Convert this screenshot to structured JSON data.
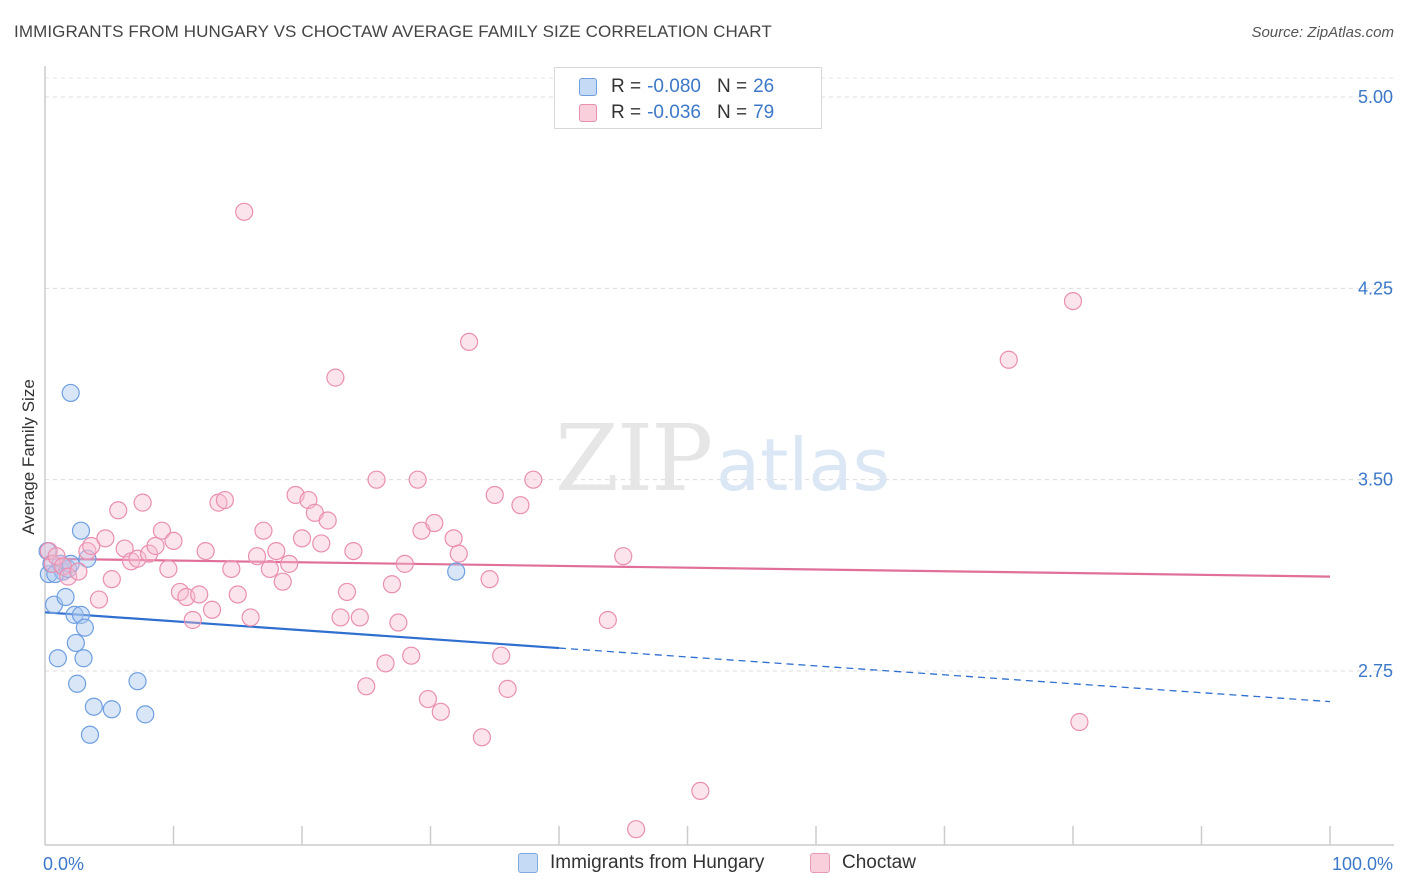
{
  "title": "IMMIGRANTS FROM HUNGARY VS CHOCTAW AVERAGE FAMILY SIZE CORRELATION CHART",
  "source": "Source: ZipAtlas.com",
  "watermark": {
    "zip": "ZIP",
    "atlas": "atlas"
  },
  "legend": {
    "rows": [
      {
        "r_label": "R =",
        "r_value": "-0.080",
        "n_label": "N =",
        "n_value": "26",
        "color": "#a9c8f0",
        "border": "#6f9fe0"
      },
      {
        "r_label": "R =",
        "r_value": "-0.036",
        "n_label": "N =",
        "n_value": "79",
        "color": "#f7bcd0",
        "border": "#e98fb0"
      }
    ]
  },
  "bottom_legend": [
    {
      "label": "Immigrants from Hungary",
      "color": "#c5daf5",
      "border": "#7fa9e0"
    },
    {
      "label": "Choctaw",
      "color": "#f9cfdc",
      "border": "#e99ab5"
    }
  ],
  "chart_data": {
    "type": "scatter",
    "title": "IMMIGRANTS FROM HUNGARY VS CHOCTAW AVERAGE FAMILY SIZE CORRELATION CHART",
    "xlabel": "",
    "ylabel": "Average Family Size",
    "xlim": [
      0,
      100
    ],
    "ylim": [
      2.0,
      5.1
    ],
    "x_tick_labels": [
      "0.0%",
      "100.0%"
    ],
    "y_ticks": [
      2.75,
      3.5,
      4.25,
      5.0
    ],
    "y_tick_labels": [
      "2.75",
      "3.50",
      "4.25",
      "5.00"
    ],
    "grid": true,
    "series": [
      {
        "name": "Immigrants from Hungary",
        "color": "#6f9fe0",
        "fill": "rgba(169,200,240,0.45)",
        "trend": {
          "x0": 0,
          "y0": 2.98,
          "x1": 40,
          "y1": 2.84,
          "dashed_to": 100,
          "dashed_y1": 2.63
        },
        "points": [
          [
            0.2,
            3.22
          ],
          [
            0.3,
            3.13
          ],
          [
            0.5,
            3.17
          ],
          [
            0.7,
            3.01
          ],
          [
            1.0,
            2.8
          ],
          [
            1.2,
            3.17
          ],
          [
            1.4,
            3.14
          ],
          [
            1.6,
            3.04
          ],
          [
            1.8,
            3.15
          ],
          [
            2.0,
            3.17
          ],
          [
            2.0,
            3.84
          ],
          [
            2.3,
            2.97
          ],
          [
            2.4,
            2.86
          ],
          [
            2.5,
            2.7
          ],
          [
            2.8,
            2.97
          ],
          [
            2.8,
            3.3
          ],
          [
            3.0,
            2.8
          ],
          [
            3.1,
            2.92
          ],
          [
            3.3,
            3.19
          ],
          [
            3.5,
            2.5
          ],
          [
            3.8,
            2.61
          ],
          [
            5.2,
            2.6
          ],
          [
            7.2,
            2.71
          ],
          [
            7.8,
            2.58
          ],
          [
            32.0,
            3.14
          ],
          [
            0.8,
            3.13
          ]
        ]
      },
      {
        "name": "Choctaw",
        "color": "#e98fb0",
        "fill": "rgba(247,188,208,0.40)",
        "trend": {
          "x0": 0,
          "y0": 3.19,
          "x1": 100,
          "y1": 3.12
        },
        "points": [
          [
            0.3,
            3.22
          ],
          [
            0.6,
            3.17
          ],
          [
            0.9,
            3.2
          ],
          [
            1.4,
            3.16
          ],
          [
            1.8,
            3.12
          ],
          [
            2.6,
            3.14
          ],
          [
            3.3,
            3.22
          ],
          [
            3.6,
            3.24
          ],
          [
            4.2,
            3.03
          ],
          [
            4.7,
            3.27
          ],
          [
            5.2,
            3.11
          ],
          [
            5.7,
            3.38
          ],
          [
            6.2,
            3.23
          ],
          [
            6.7,
            3.18
          ],
          [
            7.2,
            3.19
          ],
          [
            7.6,
            3.41
          ],
          [
            8.1,
            3.21
          ],
          [
            8.6,
            3.24
          ],
          [
            9.1,
            3.3
          ],
          [
            9.6,
            3.15
          ],
          [
            10.0,
            3.26
          ],
          [
            10.5,
            3.06
          ],
          [
            11.0,
            3.04
          ],
          [
            11.5,
            2.95
          ],
          [
            12.0,
            3.05
          ],
          [
            12.5,
            3.22
          ],
          [
            13.0,
            2.99
          ],
          [
            13.5,
            3.41
          ],
          [
            14.0,
            3.42
          ],
          [
            14.5,
            3.15
          ],
          [
            15.0,
            3.05
          ],
          [
            15.5,
            4.55
          ],
          [
            16.0,
            2.96
          ],
          [
            16.5,
            3.2
          ],
          [
            17.0,
            3.3
          ],
          [
            17.5,
            3.15
          ],
          [
            18.0,
            3.22
          ],
          [
            18.5,
            3.1
          ],
          [
            19.0,
            3.17
          ],
          [
            19.5,
            3.44
          ],
          [
            20.0,
            3.27
          ],
          [
            20.5,
            3.42
          ],
          [
            21.0,
            3.37
          ],
          [
            21.5,
            3.25
          ],
          [
            22.0,
            3.34
          ],
          [
            22.6,
            3.9
          ],
          [
            23.0,
            2.96
          ],
          [
            23.5,
            3.06
          ],
          [
            24.0,
            3.22
          ],
          [
            24.5,
            2.96
          ],
          [
            25.0,
            2.69
          ],
          [
            25.8,
            3.5
          ],
          [
            26.5,
            2.78
          ],
          [
            27.0,
            3.09
          ],
          [
            27.5,
            2.94
          ],
          [
            28.0,
            3.17
          ],
          [
            28.5,
            2.81
          ],
          [
            29.0,
            3.5
          ],
          [
            29.3,
            3.3
          ],
          [
            29.8,
            2.64
          ],
          [
            30.3,
            3.33
          ],
          [
            30.8,
            2.59
          ],
          [
            31.8,
            3.27
          ],
          [
            32.2,
            3.21
          ],
          [
            33.0,
            4.04
          ],
          [
            34.0,
            2.49
          ],
          [
            34.6,
            3.11
          ],
          [
            35.0,
            3.44
          ],
          [
            35.5,
            2.81
          ],
          [
            36.0,
            2.68
          ],
          [
            37.0,
            3.4
          ],
          [
            38.0,
            3.5
          ],
          [
            43.8,
            2.95
          ],
          [
            45.0,
            3.2
          ],
          [
            46.0,
            2.13
          ],
          [
            51.0,
            2.28
          ],
          [
            75.0,
            3.97
          ],
          [
            80.0,
            4.2
          ],
          [
            80.5,
            2.55
          ]
        ]
      }
    ]
  }
}
